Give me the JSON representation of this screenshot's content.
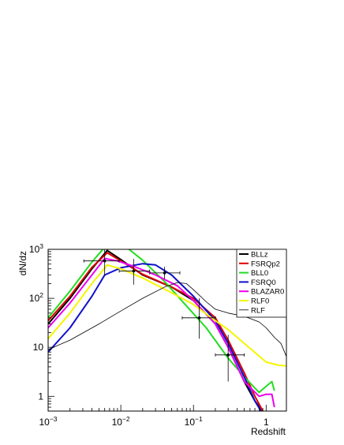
{
  "chart_data": {
    "type": "line",
    "xlabel": "Redshift",
    "ylabel": "dN/dz",
    "xscale": "log",
    "yscale": "log",
    "xlim": [
      0.001,
      1.9
    ],
    "ylim": [
      0.5,
      1000
    ],
    "x_ticks": [
      {
        "value": 0.001,
        "base": "10",
        "exp": "−3"
      },
      {
        "value": 0.01,
        "base": "10",
        "exp": "−2"
      },
      {
        "value": 0.1,
        "base": "10",
        "exp": "−1"
      },
      {
        "value": 1,
        "base": "1",
        "exp": ""
      }
    ],
    "y_ticks": [
      {
        "value": 1,
        "base": "1",
        "exp": ""
      },
      {
        "value": 10,
        "base": "10",
        "exp": ""
      },
      {
        "value": 100,
        "base": "10",
        "exp": "2"
      },
      {
        "value": 1000,
        "base": "10",
        "exp": "3"
      }
    ],
    "legend_position": "top-right",
    "series": [
      {
        "name": "BLLz",
        "color": "#000000",
        "width": 2,
        "x": [
          0.001,
          0.002,
          0.004,
          0.0065,
          0.01,
          0.02,
          0.05,
          0.1,
          0.2,
          0.3,
          0.5,
          0.7,
          1.0
        ],
        "y": [
          30,
          100,
          400,
          950,
          620,
          300,
          170,
          90,
          30,
          10,
          2.0,
          0.8,
          0.4
        ]
      },
      {
        "name": "FSRQp2",
        "color": "#e00000",
        "width": 2,
        "x": [
          0.001,
          0.002,
          0.004,
          0.0065,
          0.01,
          0.02,
          0.05,
          0.1,
          0.2,
          0.3,
          0.5,
          0.7,
          0.9
        ],
        "y": [
          35,
          110,
          430,
          850,
          580,
          310,
          170,
          100,
          40,
          14,
          3.0,
          1.0,
          0.5
        ]
      },
      {
        "name": "BLL0",
        "color": "#22dd22",
        "width": 2,
        "x": [
          0.001,
          0.002,
          0.004,
          0.006,
          0.0085,
          0.013,
          0.02,
          0.04,
          0.08,
          0.15,
          0.3,
          0.5,
          0.8,
          1.0,
          1.2,
          1.3
        ],
        "y": [
          40,
          140,
          550,
          1100,
          1250,
          1000,
          600,
          220,
          70,
          25,
          6,
          2.5,
          1.2,
          1.6,
          2.0,
          1.3
        ]
      },
      {
        "name": "FSRQ0",
        "color": "#1010cc",
        "width": 2,
        "x": [
          0.001,
          0.002,
          0.004,
          0.006,
          0.01,
          0.02,
          0.03,
          0.05,
          0.1,
          0.2,
          0.3,
          0.5,
          0.7,
          0.85
        ],
        "y": [
          8,
          25,
          110,
          300,
          420,
          510,
          480,
          300,
          110,
          35,
          12,
          2.5,
          0.8,
          0.5
        ]
      },
      {
        "name": "BLAZAR0",
        "color": "#ee00ee",
        "width": 2,
        "x": [
          0.001,
          0.002,
          0.004,
          0.006,
          0.009,
          0.015,
          0.03,
          0.06,
          0.1,
          0.2,
          0.3,
          0.5,
          0.8,
          1.0,
          1.2,
          1.3
        ],
        "y": [
          25,
          80,
          300,
          650,
          580,
          450,
          300,
          180,
          90,
          30,
          10,
          2.0,
          1.0,
          1.1,
          1.1,
          0.6
        ]
      },
      {
        "name": "RLF0",
        "color": "#f5f500",
        "width": 2,
        "x": [
          0.001,
          0.002,
          0.004,
          0.0065,
          0.01,
          0.02,
          0.05,
          0.1,
          0.2,
          0.3,
          0.5,
          1.0,
          1.5,
          1.9
        ],
        "y": [
          15,
          50,
          200,
          480,
          400,
          260,
          130,
          75,
          35,
          23,
          12,
          5,
          4.3,
          4.2
        ]
      },
      {
        "name": "RLF",
        "color": "#000000",
        "width": 0.8,
        "x": [
          0.001,
          0.002,
          0.005,
          0.01,
          0.02,
          0.04,
          0.06,
          0.08,
          0.1,
          0.15,
          0.2,
          0.3,
          0.5,
          0.8,
          1.0,
          1.3,
          1.6,
          1.9
        ],
        "y": [
          9,
          14,
          30,
          55,
          100,
          170,
          210,
          200,
          150,
          85,
          60,
          50,
          43,
          33,
          25,
          16,
          12,
          6.5
        ]
      }
    ],
    "data_points": [
      {
        "x": 0.006,
        "y": 580,
        "xerr": [
          0.0031,
          0.0095
        ],
        "yerr": [
          290,
          1000
        ]
      },
      {
        "x": 0.015,
        "y": 360,
        "xerr": [
          0.0095,
          0.025
        ],
        "yerr": [
          190,
          640
        ]
      },
      {
        "x": 0.04,
        "y": 330,
        "xerr": [
          0.025,
          0.065
        ],
        "yerr": [
          250,
          440
        ]
      },
      {
        "x": 0.12,
        "y": 40,
        "xerr": [
          0.07,
          0.2
        ],
        "yerr": [
          15,
          100
        ]
      },
      {
        "x": 0.3,
        "y": 7,
        "xerr": [
          0.2,
          0.5
        ],
        "yerr": [
          2,
          18
        ]
      }
    ]
  }
}
